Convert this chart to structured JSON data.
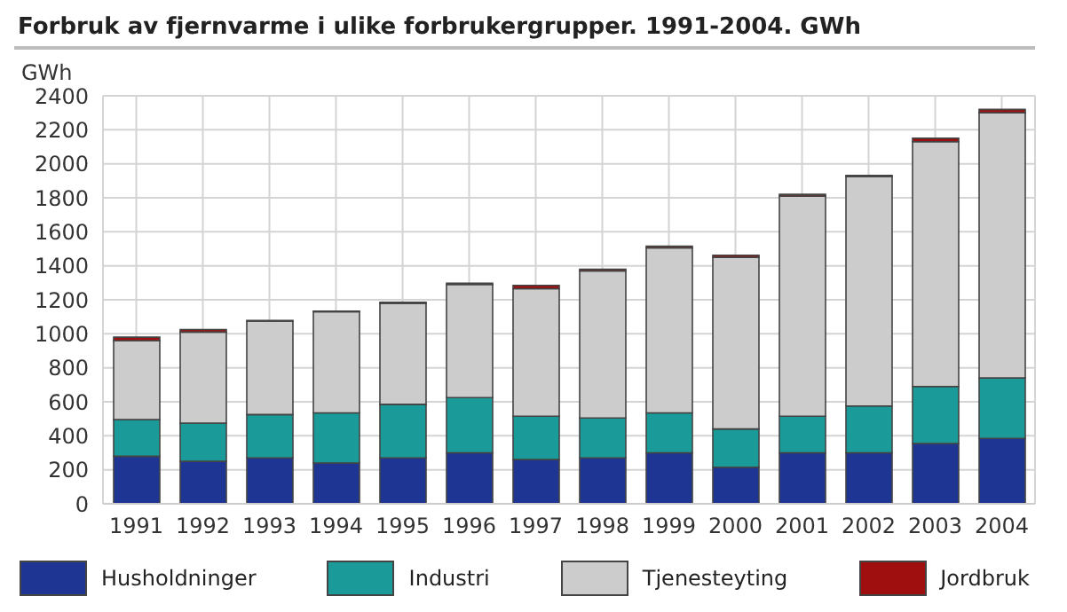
{
  "chart_data": {
    "type": "bar",
    "title": "Forbruk av fjernvarme i ulike forbrukergrupper. 1991-2004. GWh",
    "ylabel": "GWh",
    "categories": [
      "1991",
      "1992",
      "1993",
      "1994",
      "1995",
      "1996",
      "1997",
      "1998",
      "1999",
      "2000",
      "2001",
      "2002",
      "2003",
      "2004"
    ],
    "stacked": true,
    "series": [
      {
        "name": "Husholdninger",
        "color": "#1f3593",
        "values": [
          280,
          250,
          270,
          240,
          270,
          300,
          260,
          270,
          300,
          215,
          300,
          300,
          355,
          385
        ]
      },
      {
        "name": "Industri",
        "color": "#1a9a99",
        "values": [
          215,
          225,
          255,
          295,
          315,
          325,
          255,
          235,
          235,
          225,
          215,
          275,
          335,
          355
        ]
      },
      {
        "name": "Tjenesteyting",
        "color": "#cccccc",
        "values": [
          465,
          535,
          550,
          595,
          595,
          665,
          750,
          865,
          970,
          1010,
          1295,
          1350,
          1440,
          1560
        ]
      },
      {
        "name": "Jordbruk",
        "color": "#a00f0f",
        "values": [
          20,
          15,
          3,
          3,
          5,
          8,
          20,
          10,
          10,
          12,
          10,
          6,
          20,
          20
        ]
      }
    ],
    "ylim": [
      0,
      2400
    ],
    "yticks": [
      0,
      200,
      400,
      600,
      800,
      1000,
      1200,
      1400,
      1600,
      1800,
      2000,
      2200,
      2400
    ],
    "grid": true,
    "legend": "bottom"
  }
}
